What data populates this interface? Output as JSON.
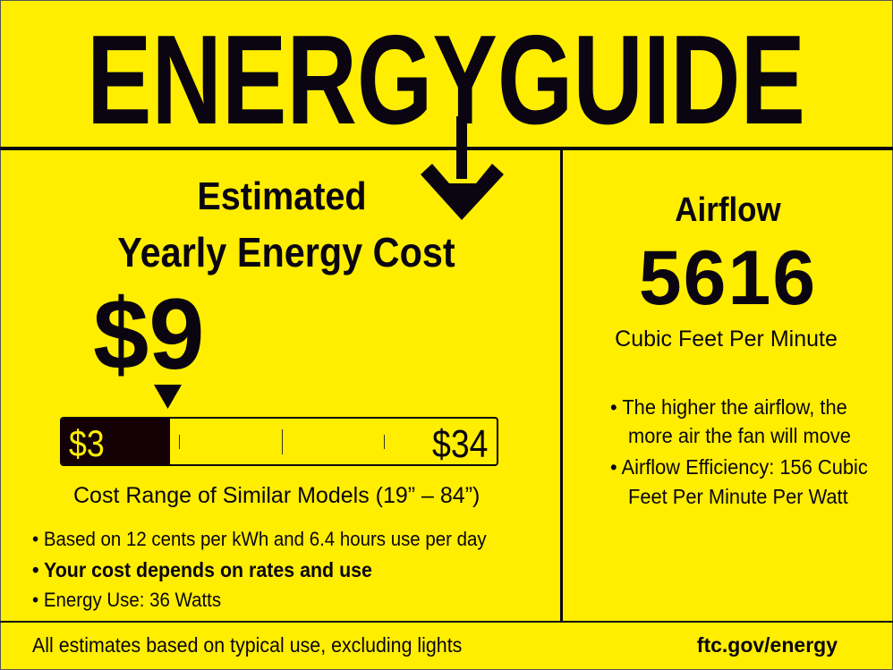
{
  "header": {
    "logo_text": "ENERGYGUIDE"
  },
  "cost_panel": {
    "title_line1": "Estimated",
    "title_line2": "Yearly Energy Cost",
    "cost": "$9",
    "cost_value": 9,
    "range": {
      "min_label": "$3",
      "max_label": "$34",
      "min": 3,
      "max": 34
    },
    "range_caption": "Cost Range of Similar Models (19” – 84”)",
    "bullets": [
      "• Based on 12 cents per kWh and 6.4 hours use per day",
      "• Your cost depends on rates and use",
      "• Energy Use: 36 Watts"
    ]
  },
  "airflow_panel": {
    "title": "Airflow",
    "value": "5616",
    "unit": "Cubic Feet Per Minute",
    "bullets": [
      "• The higher the airflow, the",
      "more air the fan will move",
      "• Airflow Efficiency: 156 Cubic",
      "Feet Per Minute Per Watt"
    ]
  },
  "footer": {
    "note": "All estimates based on typical use, excluding lights",
    "link": "ftc.gov/energy"
  },
  "colors": {
    "background": "#FFEE00",
    "ink": "#0A0510"
  }
}
